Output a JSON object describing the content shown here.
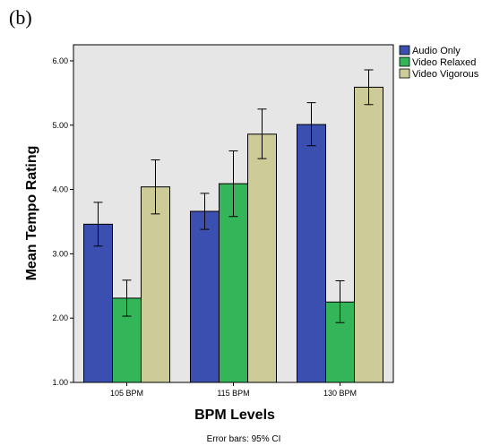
{
  "panel_label": "(b)",
  "chart_data": {
    "type": "bar",
    "categories": [
      "105 BPM",
      "115 BPM",
      "130 BPM"
    ],
    "series": [
      {
        "name": "Audio Only",
        "color": "#3a4fb0",
        "values": [
          3.46,
          3.66,
          5.01
        ],
        "ci_low": [
          3.12,
          3.38,
          4.68
        ],
        "ci_high": [
          3.8,
          3.94,
          5.35
        ]
      },
      {
        "name": "Video Relaxed",
        "color": "#35b559",
        "values": [
          2.31,
          4.09,
          2.25
        ],
        "ci_low": [
          2.03,
          3.58,
          1.93
        ],
        "ci_high": [
          2.59,
          4.6,
          2.58
        ]
      },
      {
        "name": "Video Vigorous",
        "color": "#cdcb98",
        "values": [
          4.04,
          4.86,
          5.59
        ],
        "ci_low": [
          3.62,
          4.48,
          5.32
        ],
        "ci_high": [
          4.46,
          5.25,
          5.86
        ]
      }
    ],
    "yticks": [
      "1.00",
      "2.00",
      "3.00",
      "4.00",
      "5.00",
      "6.00"
    ],
    "ylim": [
      1.0,
      6.25
    ],
    "xlabel": "BPM Levels",
    "ylabel": "Mean Tempo Rating",
    "legend_position": "top-right",
    "plot_background": "#e6e6e6",
    "footnote": "Error bars: 95% CI"
  }
}
